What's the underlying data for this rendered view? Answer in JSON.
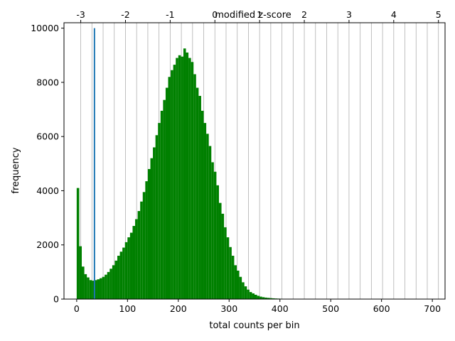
{
  "chart_data": {
    "type": "bar",
    "xlabel": "total counts per bin",
    "ylabel": "frequency",
    "top_xlabel": "modified z-score",
    "xlim": [
      -25,
      725
    ],
    "ylim": [
      0,
      10200
    ],
    "bar_color": "#008000",
    "marker_color": "#1f77b4",
    "grid_color": "#b0b0b0",
    "bin_width": 5,
    "bins_start": 0,
    "values": [
      4100,
      1950,
      1200,
      920,
      800,
      700,
      680,
      700,
      730,
      770,
      820,
      900,
      1000,
      1120,
      1250,
      1420,
      1600,
      1750,
      1900,
      2100,
      2280,
      2450,
      2700,
      2950,
      3250,
      3600,
      3950,
      4350,
      4800,
      5200,
      5600,
      6050,
      6500,
      6950,
      7350,
      7800,
      8200,
      8450,
      8650,
      8900,
      9000,
      8950,
      9250,
      9100,
      8900,
      8750,
      8300,
      7800,
      7500,
      6950,
      6500,
      6100,
      5650,
      5050,
      4700,
      4200,
      3550,
      3150,
      2650,
      2280,
      1920,
      1600,
      1250,
      1050,
      820,
      620,
      470,
      350,
      260,
      210,
      160,
      120,
      90,
      70,
      55,
      45,
      35,
      28,
      22,
      18,
      14,
      11,
      9,
      7,
      5,
      4,
      3,
      2,
      2,
      1,
      1,
      1,
      1,
      1,
      1,
      1,
      1,
      1,
      1,
      1,
      1,
      1,
      1,
      1,
      1,
      1,
      1,
      1,
      1,
      1,
      1,
      1,
      1,
      1,
      1,
      1,
      1,
      1,
      1,
      1,
      1,
      1,
      1,
      1,
      1,
      1,
      1,
      1,
      1,
      1,
      1,
      1,
      1,
      1,
      1,
      1,
      1,
      1,
      1,
      1
    ],
    "marker": {
      "x": 35,
      "y": 10000
    },
    "x_ticks": [
      0,
      100,
      200,
      300,
      400,
      500,
      600,
      700
    ],
    "x_tick_labels": [
      "0",
      "100",
      "200",
      "300",
      "400",
      "500",
      "600",
      "700"
    ],
    "y_ticks": [
      0,
      2000,
      4000,
      6000,
      8000,
      10000
    ],
    "y_tick_labels": [
      "0",
      "2000",
      "4000",
      "6000",
      "8000",
      "10000"
    ],
    "z_ticks": [
      -3,
      -2,
      -1,
      0,
      1,
      2,
      3,
      4,
      5
    ],
    "z_tick_labels": [
      "-3",
      "-2",
      "-1",
      "0",
      "1",
      "2",
      "3",
      "4",
      "5"
    ],
    "z_zero_at": 272,
    "z_unit": 88,
    "z_grid_step": 0.25,
    "z_grid_range": [
      -3,
      5
    ]
  }
}
